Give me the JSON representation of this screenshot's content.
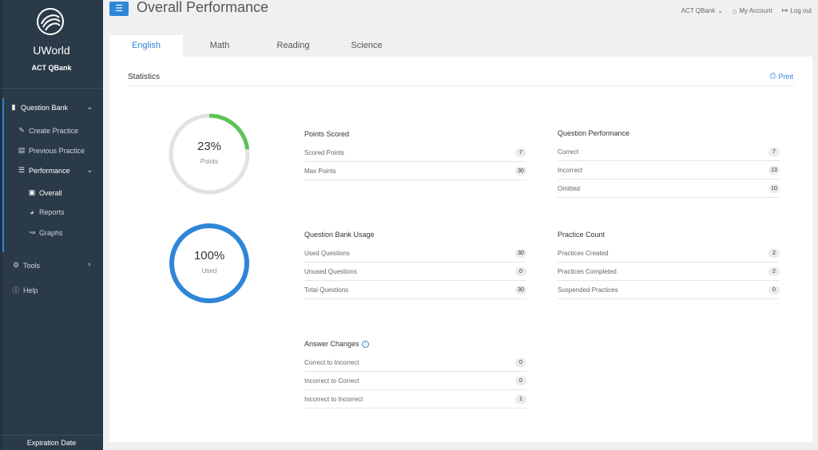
{
  "sidebar": {
    "brand": "UWorld",
    "product": "ACT QBank",
    "question_bank": "Question Bank",
    "create_practice": "Create Practice",
    "previous_practice": "Previous Practice",
    "performance": "Performance",
    "overall": "Overall",
    "reports": "Reports",
    "graphs": "Graphs",
    "tools": "Tools",
    "help": "Help",
    "expiration": "Expiration Date"
  },
  "header": {
    "title": "Overall Performance",
    "qbank_menu": "ACT QBank",
    "my_account": "My Account",
    "logout": "Log out"
  },
  "tabs": [
    "English",
    "Math",
    "Reading",
    "Science"
  ],
  "active_tab": "English",
  "statistics": {
    "title": "Statistics",
    "print": "Print",
    "points": {
      "value": "23%",
      "label": "Points",
      "fraction": 0.23
    },
    "usage": {
      "value": "100%",
      "label": "Used",
      "fraction": 1.0
    },
    "points_scored": {
      "title": "Points Scored",
      "rows": [
        {
          "label": "Scored Points",
          "value": "7"
        },
        {
          "label": "Max Points",
          "value": "30"
        }
      ]
    },
    "question_performance": {
      "title": "Question Performance",
      "rows": [
        {
          "label": "Correct",
          "value": "7"
        },
        {
          "label": "Incorrect",
          "value": "13"
        },
        {
          "label": "Omitted",
          "value": "10"
        }
      ]
    },
    "question_bank_usage": {
      "title": "Question Bank Usage",
      "rows": [
        {
          "label": "Used Questions",
          "value": "30"
        },
        {
          "label": "Unused Questions",
          "value": "0"
        },
        {
          "label": "Total Questions",
          "value": "30"
        }
      ]
    },
    "practice_count": {
      "title": "Practice Count",
      "rows": [
        {
          "label": "Practices Created",
          "value": "2"
        },
        {
          "label": "Practices Completed",
          "value": "2"
        },
        {
          "label": "Suspended Practices",
          "value": "0"
        }
      ]
    },
    "answer_changes": {
      "title": "Answer Changes",
      "rows": [
        {
          "label": "Correct to Incorrect",
          "value": "0"
        },
        {
          "label": "Incorrect to Correct",
          "value": "0"
        },
        {
          "label": "Incorrect to Incorrect",
          "value": "1"
        }
      ]
    }
  },
  "colors": {
    "accent": "#2f86d8",
    "sidebar": "#2b3a48",
    "progress_green": "#5cc35a",
    "track": "#e2e2e2"
  }
}
